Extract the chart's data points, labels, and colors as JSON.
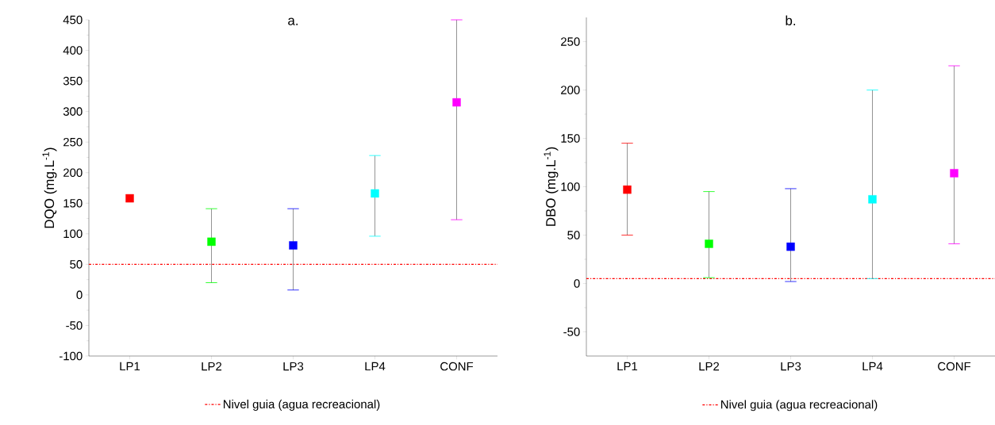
{
  "chart_data": [
    {
      "type": "scatter",
      "title": "a.",
      "ylabel": "DQO (mg.L$^{-1}$)",
      "categories": [
        "LP1",
        "LP2",
        "LP3",
        "LP4",
        "CONF"
      ],
      "values": [
        158,
        87,
        81,
        166,
        315
      ],
      "errors": [
        null,
        [
          20,
          141
        ],
        [
          8,
          141
        ],
        [
          96,
          228
        ],
        [
          123,
          450
        ]
      ],
      "colors": [
        "#ff0000",
        "#00ff00",
        "#0000ff",
        "#00ffff",
        "#ff00ff"
      ],
      "ylim": [
        -100,
        450
      ],
      "yticks": [
        -100,
        -50,
        0,
        50,
        100,
        150,
        200,
        250,
        300,
        350,
        400,
        450
      ],
      "ref_lines": [
        {
          "axis": "y",
          "value": 50,
          "label": "Nivel guia (agua recreacional)",
          "color": "#ff0000",
          "line_style": "dashdot"
        }
      ],
      "marker": "square",
      "legend": "bottom"
    },
    {
      "type": "scatter",
      "title": "b.",
      "ylabel": "DBO (mg.L$^{-1}$)",
      "categories": [
        "LP1",
        "LP2",
        "LP3",
        "LP4",
        "CONF"
      ],
      "values": [
        97,
        41,
        38,
        87,
        114
      ],
      "errors": [
        [
          50,
          145
        ],
        [
          6,
          95
        ],
        [
          2,
          98
        ],
        [
          5,
          200
        ],
        [
          41,
          225
        ]
      ],
      "colors": [
        "#ff0000",
        "#00ff00",
        "#0000ff",
        "#00ffff",
        "#ff00ff"
      ],
      "ylim": [
        -75,
        275
      ],
      "yticks": [
        -50,
        0,
        50,
        100,
        150,
        200,
        250
      ],
      "ref_lines": [
        {
          "axis": "y",
          "value": 5,
          "label": "Nivel guia (agua recreacional)",
          "color": "#ff0000",
          "line_style": "dashdot"
        }
      ],
      "marker": "square",
      "legend": "bottom"
    }
  ]
}
